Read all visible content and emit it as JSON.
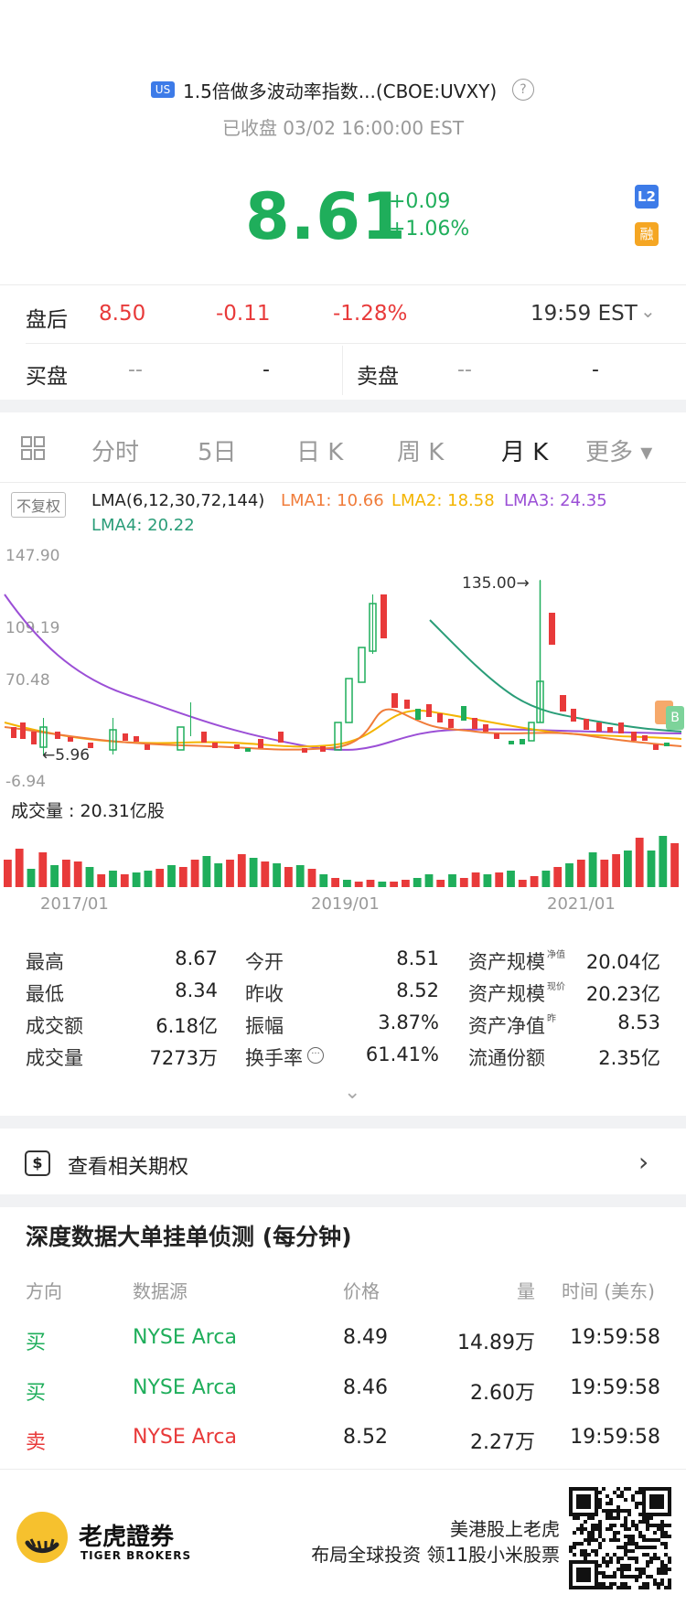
{
  "header": {
    "market_badge": "US",
    "title": "1.5倍做多波动率指数...(CBOE:UVXY)",
    "help_icon": "?",
    "status": "已收盘 03/02 16:00:00 EST",
    "price": "8.61",
    "change": "+0.09",
    "change_pct": "+1.06%",
    "badge_l2": "L2",
    "badge_margin": "融"
  },
  "after_hours": {
    "label": "盘后",
    "price": "8.50",
    "change": "-0.11",
    "change_pct": "-1.28%",
    "time": "19:59 EST"
  },
  "quote": {
    "bid_label": "买盘",
    "bid_price": "--",
    "bid_size": "-",
    "ask_label": "卖盘",
    "ask_price": "--",
    "ask_size": "-"
  },
  "tabs": [
    {
      "label": "分时"
    },
    {
      "label": "5日"
    },
    {
      "label": "日 K"
    },
    {
      "label": "周 K"
    },
    {
      "label": "月 K",
      "active": true
    },
    {
      "label": "更多 ▾"
    }
  ],
  "chart": {
    "adjust_label": "不复权",
    "lma_title": "LMA(6,12,30,72,144)",
    "lma1": "LMA1: 10.66",
    "lma2": "LMA2: 18.58",
    "lma3": "LMA3: 24.35",
    "lma4": "LMA4: 20.22",
    "y_ticks": [
      "147.90",
      "109.19",
      "70.48",
      "-6.94"
    ],
    "low_label": "←5.96",
    "high_label": "135.00→",
    "volume_label": "成交量 : 20.31亿股",
    "x_ticks": [
      "2017/01",
      "2019/01",
      "2021/01"
    ],
    "colors": {
      "up": "#1fae5b",
      "down": "#e83a3a",
      "lma1": "#f07c3a",
      "lma2": "#f4b400",
      "lma3": "#9b4fd6",
      "lma4": "#2a9d78"
    }
  },
  "stats": [
    {
      "label": "最高",
      "value": "8.67"
    },
    {
      "label": "今开",
      "value": "8.51"
    },
    {
      "label": "资产规模",
      "sup": "净值",
      "value": "20.04亿"
    },
    {
      "label": "最低",
      "value": "8.34"
    },
    {
      "label": "昨收",
      "value": "8.52"
    },
    {
      "label": "资产规模",
      "sup": "现价",
      "value": "20.23亿"
    },
    {
      "label": "成交额",
      "value": "6.18亿"
    },
    {
      "label": "振幅",
      "value": "3.87%"
    },
    {
      "label": "资产净值",
      "sup": "昨",
      "value": "8.53"
    },
    {
      "label": "成交量",
      "value": "7273万"
    },
    {
      "label": "换手率",
      "value": "61.41%"
    },
    {
      "label": "流通份额",
      "value": "2.35亿"
    }
  ],
  "options_link": {
    "label": "查看相关期权"
  },
  "depth": {
    "title": "深度数据大单挂单侦测 (每分钟)",
    "headers": [
      "方向",
      "数据源",
      "价格",
      "量",
      "时间 (美东)"
    ],
    "rows": [
      {
        "side": "买",
        "source": "NYSE Arca",
        "price": "8.49",
        "qty": "14.89万",
        "time": "19:59:58",
        "kind": "buy"
      },
      {
        "side": "买",
        "source": "NYSE Arca",
        "price": "8.46",
        "qty": "2.60万",
        "time": "19:59:58",
        "kind": "buy"
      },
      {
        "side": "卖",
        "source": "NYSE Arca",
        "price": "8.52",
        "qty": "2.27万",
        "time": "19:59:58",
        "kind": "sell"
      }
    ]
  },
  "footer": {
    "brand_cn": "老虎證券",
    "brand_en": "TIGER BROKERS",
    "slogan1": "美港股上老虎",
    "slogan2": "布局全球投资 领11股小米股票"
  }
}
